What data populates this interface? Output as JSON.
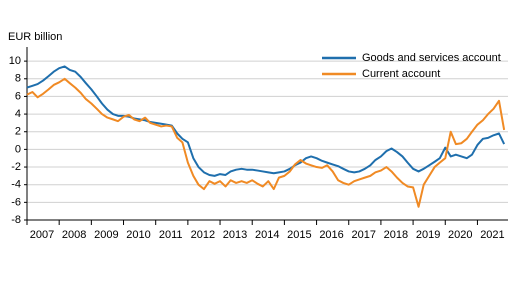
{
  "chart_data": {
    "type": "line",
    "y_label": "EUR billion",
    "x": [
      2007,
      2007.17,
      2007.33,
      2007.5,
      2007.67,
      2007.83,
      2008,
      2008.17,
      2008.33,
      2008.5,
      2008.67,
      2008.83,
      2009,
      2009.17,
      2009.33,
      2009.5,
      2009.67,
      2009.83,
      2010,
      2010.17,
      2010.33,
      2010.5,
      2010.67,
      2010.83,
      2011,
      2011.17,
      2011.33,
      2011.5,
      2011.67,
      2011.83,
      2012,
      2012.17,
      2012.33,
      2012.5,
      2012.67,
      2012.83,
      2013,
      2013.17,
      2013.33,
      2013.5,
      2013.67,
      2013.83,
      2014,
      2014.17,
      2014.33,
      2014.5,
      2014.67,
      2014.83,
      2015,
      2015.17,
      2015.33,
      2015.5,
      2015.67,
      2015.83,
      2016,
      2016.17,
      2016.33,
      2016.5,
      2016.67,
      2016.83,
      2017,
      2017.17,
      2017.33,
      2017.5,
      2017.67,
      2017.83,
      2018,
      2018.17,
      2018.33,
      2018.5,
      2018.67,
      2018.83,
      2019,
      2019.17,
      2019.33,
      2019.5,
      2019.67,
      2019.83,
      2020,
      2020.17,
      2020.33,
      2020.5,
      2020.67,
      2020.83,
      2021,
      2021.17,
      2021.33,
      2021.5,
      2021.67,
      2021.83
    ],
    "series": [
      {
        "name": "Goods and services account",
        "color": "#1f6fad",
        "values": [
          7.0,
          7.2,
          7.4,
          7.8,
          8.3,
          8.8,
          9.2,
          9.4,
          9.0,
          8.8,
          8.2,
          7.5,
          6.8,
          6.0,
          5.2,
          4.5,
          4.0,
          3.8,
          3.8,
          3.7,
          3.5,
          3.4,
          3.3,
          3.1,
          3.0,
          2.9,
          2.8,
          2.7,
          1.8,
          1.2,
          0.8,
          -1.0,
          -2.0,
          -2.6,
          -2.9,
          -3.0,
          -2.8,
          -2.9,
          -2.5,
          -2.3,
          -2.2,
          -2.3,
          -2.3,
          -2.4,
          -2.5,
          -2.6,
          -2.7,
          -2.6,
          -2.5,
          -2.2,
          -1.8,
          -1.5,
          -1.0,
          -0.8,
          -1.0,
          -1.3,
          -1.5,
          -1.7,
          -1.9,
          -2.2,
          -2.5,
          -2.6,
          -2.5,
          -2.2,
          -1.8,
          -1.2,
          -0.8,
          -0.2,
          0.1,
          -0.3,
          -0.8,
          -1.5,
          -2.2,
          -2.5,
          -2.2,
          -1.8,
          -1.4,
          -1.0,
          0.2,
          -0.8,
          -0.6,
          -0.8,
          -1.0,
          -0.6,
          0.5,
          1.2,
          1.3,
          1.6,
          1.8,
          0.6
        ]
      },
      {
        "name": "Current account",
        "color": "#f08a24",
        "values": [
          6.2,
          6.5,
          5.9,
          6.3,
          6.8,
          7.3,
          7.6,
          8.0,
          7.5,
          7.0,
          6.4,
          5.7,
          5.2,
          4.6,
          4.0,
          3.6,
          3.4,
          3.2,
          3.7,
          3.9,
          3.4,
          3.2,
          3.6,
          3.0,
          2.8,
          2.6,
          2.7,
          2.6,
          1.3,
          0.8,
          -1.5,
          -3.0,
          -4.0,
          -4.5,
          -3.6,
          -3.9,
          -3.6,
          -4.2,
          -3.5,
          -3.8,
          -3.6,
          -3.8,
          -3.5,
          -3.9,
          -4.2,
          -3.6,
          -4.5,
          -3.2,
          -3.0,
          -2.5,
          -1.7,
          -1.2,
          -1.6,
          -1.8,
          -2.0,
          -2.1,
          -1.8,
          -2.5,
          -3.5,
          -3.8,
          -4.0,
          -3.6,
          -3.4,
          -3.2,
          -3.0,
          -2.6,
          -2.4,
          -2.0,
          -2.5,
          -3.2,
          -3.8,
          -4.2,
          -4.3,
          -6.5,
          -4.0,
          -3.0,
          -2.0,
          -1.5,
          -1.0,
          2.0,
          0.6,
          0.7,
          1.2,
          2.0,
          2.8,
          3.3,
          4.0,
          4.6,
          5.5,
          2.2
        ]
      }
    ],
    "xlim": [
      2007,
      2021.95
    ],
    "xticks": [
      2007,
      2008,
      2009,
      2010,
      2011,
      2012,
      2013,
      2014,
      2015,
      2016,
      2017,
      2018,
      2019,
      2020,
      2021
    ],
    "ylim": [
      -8,
      11.6
    ],
    "yticks": [
      -8,
      -6,
      -4,
      -2,
      0,
      2,
      4,
      6,
      8,
      10
    ],
    "grid": true,
    "legend": "top-right"
  }
}
